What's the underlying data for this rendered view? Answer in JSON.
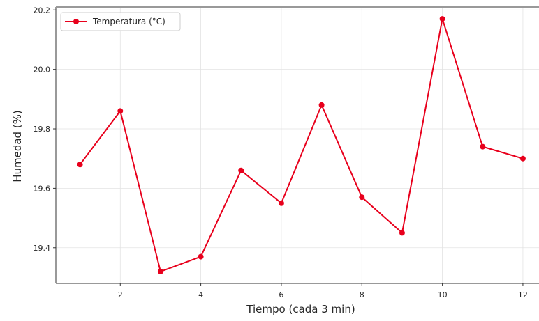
{
  "chart_data": {
    "type": "line",
    "title": "",
    "xlabel": "Tiempo (cada 3 min)",
    "ylabel": "Humedad (%)",
    "x": [
      1,
      2,
      3,
      4,
      5,
      6,
      7,
      8,
      9,
      10,
      11,
      12
    ],
    "series": [
      {
        "name": "Temperatura (°C)",
        "color": "#e8001c",
        "marker": "circle",
        "values": [
          19.68,
          19.86,
          19.32,
          19.37,
          19.66,
          19.55,
          19.88,
          19.57,
          19.45,
          20.17,
          19.74,
          19.7
        ]
      }
    ],
    "xlim": [
      0.4,
      12.4
    ],
    "ylim": [
      19.28,
      20.21
    ],
    "xticks": [
      2,
      4,
      6,
      8,
      10,
      12
    ],
    "xtick_labels": [
      "2",
      "4",
      "6",
      "8",
      "10",
      "12"
    ],
    "yticks": [
      19.4,
      19.6,
      19.8,
      20.0,
      20.2
    ],
    "ytick_labels": [
      "19.4",
      "19.6",
      "19.8",
      "20.0",
      "20.2"
    ],
    "grid": true,
    "legend_position": "top-left"
  }
}
